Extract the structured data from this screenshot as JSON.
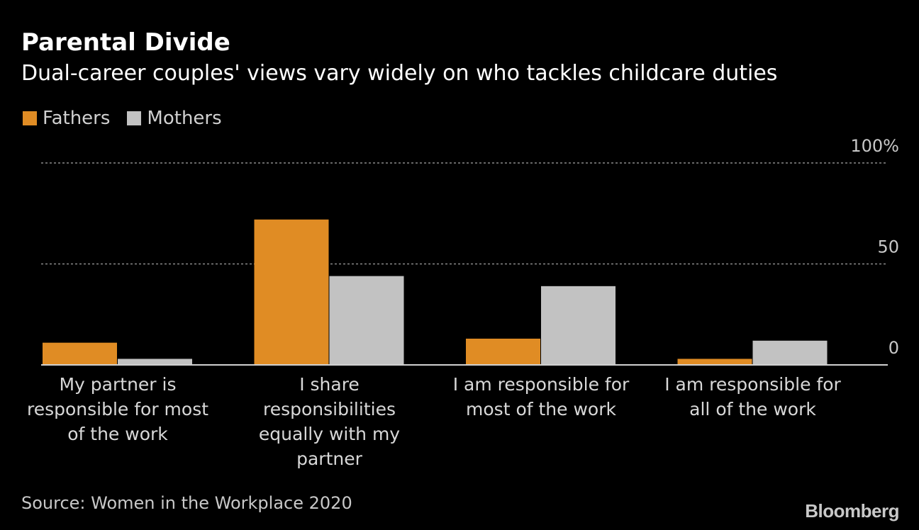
{
  "chart_data": {
    "type": "bar",
    "title": "Parental Divide",
    "subtitle": "Dual-career couples' views vary widely on who tackles childcare duties",
    "categories": [
      [
        "My partner is",
        "responsible for most",
        "of the work"
      ],
      [
        "I share",
        "responsibilities",
        "equally with my",
        "partner"
      ],
      [
        "I am responsible for",
        "most of the work"
      ],
      [
        "I am responsible for",
        "all of the work"
      ]
    ],
    "series": [
      {
        "name": "Fathers",
        "color": "#e08c24",
        "values": [
          11,
          72,
          13,
          3
        ]
      },
      {
        "name": "Mothers",
        "color": "#c2c2c2",
        "values": [
          3,
          44,
          39,
          12
        ]
      }
    ],
    "ylim": [
      0,
      100
    ],
    "yticks": [
      {
        "value": 100,
        "label": "100%"
      },
      {
        "value": 50,
        "label": "50"
      },
      {
        "value": 0,
        "label": "0"
      }
    ],
    "xlabel": "",
    "ylabel": "",
    "legend_position": "top-left",
    "grid": true
  },
  "source": "Source: Women in the Workplace 2020",
  "brand": "Bloomberg"
}
